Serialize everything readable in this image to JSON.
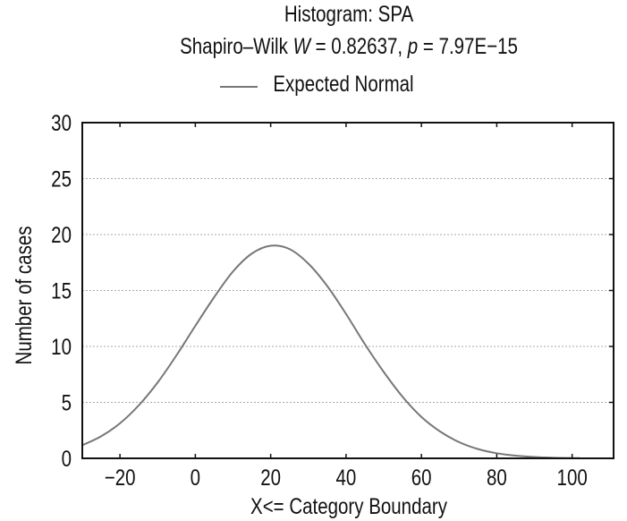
{
  "chart_data": {
    "type": "line",
    "title": "Histogram: SPA",
    "subtitle": {
      "prefix": "Shapiro–Wilk ",
      "w_label": "W",
      "w_text": " = 0.82637, ",
      "p_label": "p",
      "p_text": " = 7.97E−15"
    },
    "legend": {
      "entries": [
        "Expected Normal"
      ],
      "placement": "top-center"
    },
    "xlabel": "X<= Category Boundary",
    "ylabel": "Number of cases",
    "xlim": [
      -30,
      111
    ],
    "ylim": [
      0,
      30
    ],
    "xticks": [
      -20,
      0,
      20,
      40,
      60,
      80,
      100
    ],
    "xtick_labels": [
      "−20",
      "0",
      "20",
      "40",
      "60",
      "80",
      "100"
    ],
    "yticks": [
      0,
      5,
      10,
      15,
      20,
      25,
      30
    ],
    "ytick_labels": [
      "0",
      "5",
      "10",
      "15",
      "20",
      "25",
      "30"
    ],
    "grid": "horizontal dotted",
    "series": [
      {
        "name": "Expected Normal",
        "color": "#777777",
        "x": [
          -30,
          -25,
          -20,
          -15,
          -10,
          -5,
          0,
          5,
          10,
          15,
          20,
          25,
          30,
          35,
          40,
          45,
          50,
          55,
          60,
          65,
          70,
          75,
          80,
          85,
          90,
          95,
          100,
          102
        ],
        "y": [
          1.17,
          1.97,
          3.13,
          4.74,
          6.78,
          9.21,
          11.84,
          14.4,
          16.7,
          18.3,
          19.0,
          18.7,
          17.4,
          15.4,
          12.9,
          10.2,
          7.72,
          5.5,
          3.7,
          2.39,
          1.45,
          0.83,
          0.455,
          0.24,
          0.116,
          0.05,
          0.024,
          0.02
        ]
      }
    ]
  }
}
